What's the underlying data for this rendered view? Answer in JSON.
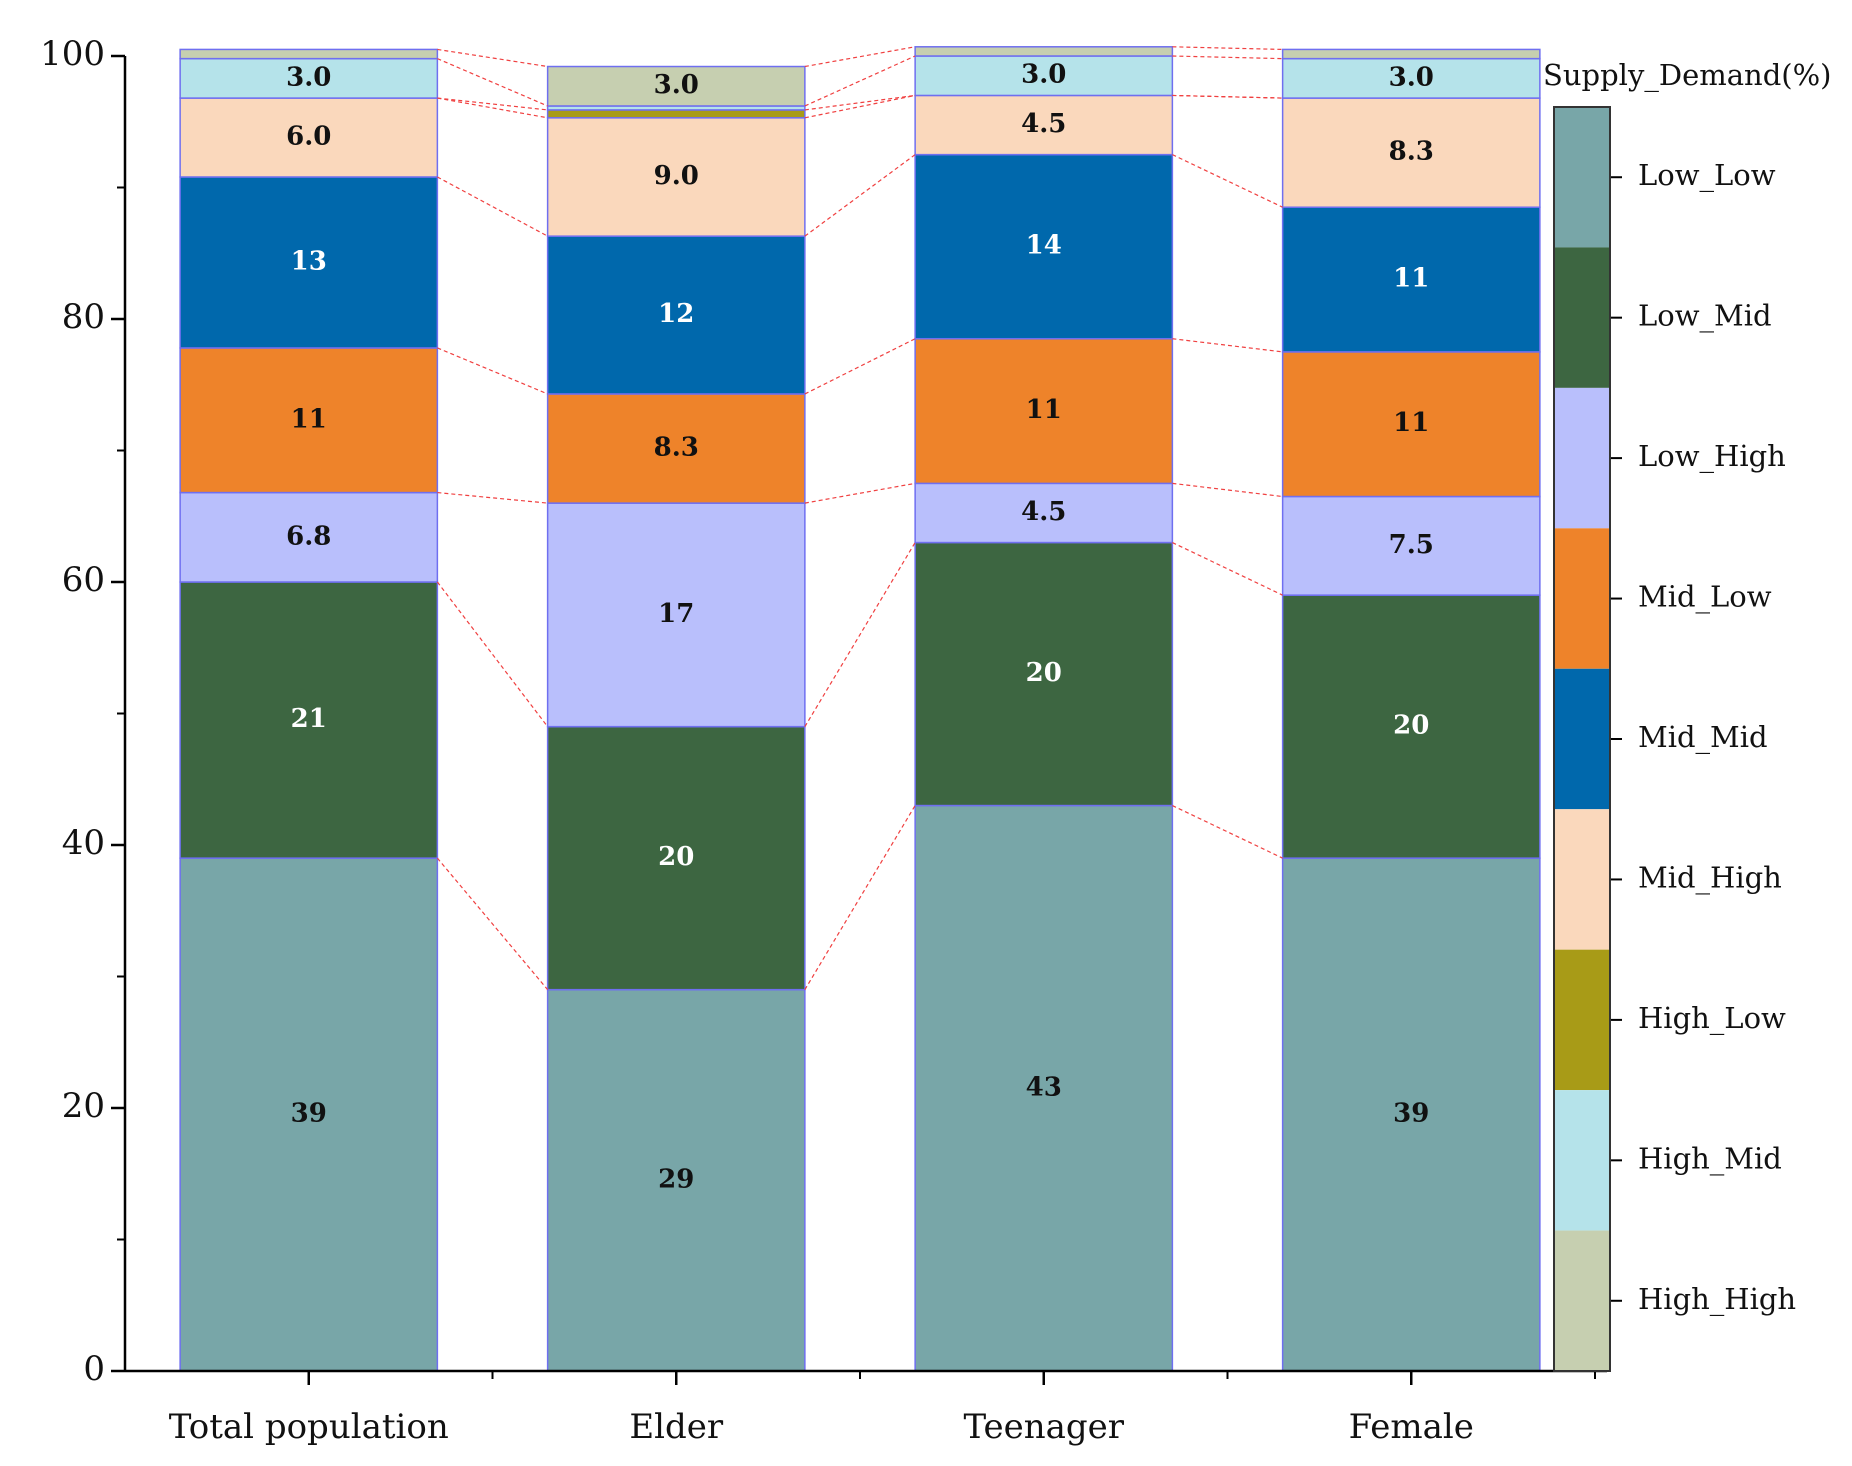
{
  "chart_data": {
    "type": "stacked_bar",
    "categories": [
      "Total population",
      "Elder",
      "Teenager",
      "Female"
    ],
    "legend_title": "Supply_Demand(%)",
    "series": [
      {
        "name": "Low_Low",
        "color": "#78a6a8",
        "values": [
          39,
          29,
          43,
          39
        ],
        "value_labels": [
          "39",
          "29",
          "43",
          "39"
        ]
      },
      {
        "name": "Low_Mid",
        "color": "#3d6641",
        "values": [
          21,
          20,
          20,
          20
        ],
        "value_labels": [
          "21",
          "20",
          "20",
          "20"
        ]
      },
      {
        "name": "Low_High",
        "color": "#b9bffc",
        "values": [
          6.8,
          17,
          4.5,
          7.5
        ],
        "value_labels": [
          "6.8",
          "17",
          "4.5",
          "7.5"
        ]
      },
      {
        "name": "Mid_Low",
        "color": "#ee832a",
        "values": [
          11,
          8.3,
          11,
          11
        ],
        "value_labels": [
          "11",
          "8.3",
          "11",
          "11"
        ]
      },
      {
        "name": "Mid_Mid",
        "color": "#0068ac",
        "values": [
          13,
          12,
          14,
          11
        ],
        "value_labels": [
          "13",
          "12",
          "14",
          "11"
        ]
      },
      {
        "name": "Mid_High",
        "color": "#fad8bc",
        "values": [
          6.0,
          9.0,
          4.5,
          8.3
        ],
        "value_labels": [
          "6.0",
          "9.0",
          "4.5",
          "8.3"
        ]
      },
      {
        "name": "High_Low",
        "color": "#a89b17",
        "values": [
          0,
          0.6,
          0,
          0
        ],
        "value_labels": [
          null,
          null,
          null,
          null
        ]
      },
      {
        "name": "High_Mid",
        "color": "#b5e3ea",
        "values": [
          3.0,
          0.3,
          3.0,
          3.0
        ],
        "value_labels": [
          "3.0",
          null,
          "3.0",
          "3.0"
        ]
      },
      {
        "name": "High_High",
        "color": "#c6cfb0",
        "values": [
          0.7,
          3.0,
          0.7,
          0.7
        ],
        "value_labels": [
          null,
          "3.0",
          null,
          null
        ]
      }
    ],
    "ylim": [
      0,
      100
    ],
    "yticks": [
      0,
      20,
      40,
      60,
      80,
      100
    ],
    "connector_lines": true
  }
}
